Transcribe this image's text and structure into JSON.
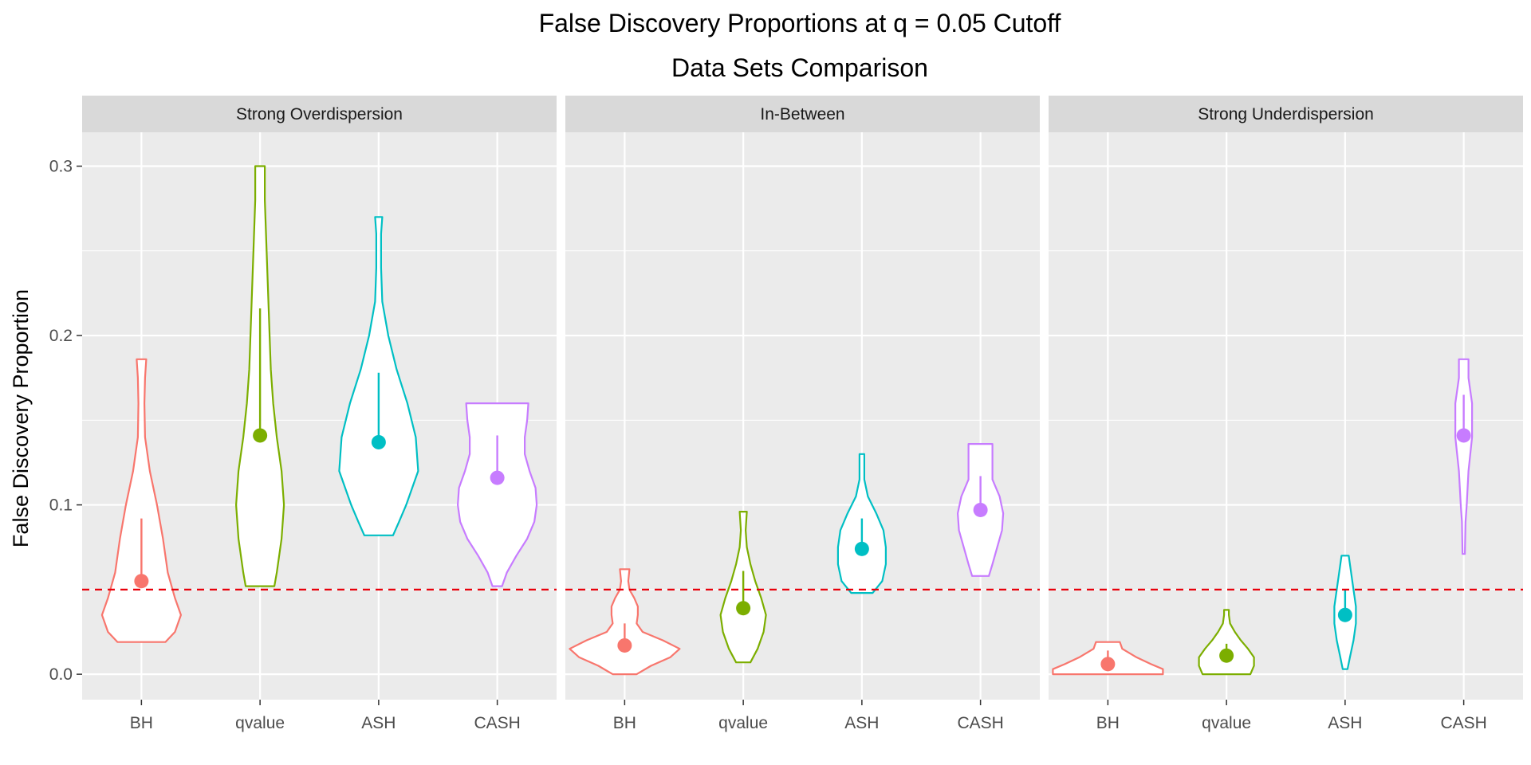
{
  "chart_data": {
    "type": "violin",
    "title": "False Discovery Proportions at q = 0.05 Cutoff",
    "subtitle": "Data Sets Comparison",
    "ylabel": "False Discovery Proportion",
    "xlabel": "",
    "ylim": [
      -0.015,
      0.32
    ],
    "yticks": [
      0.0,
      0.1,
      0.2,
      0.3
    ],
    "ytick_labels": [
      "0.0",
      "0.1",
      "0.2",
      "0.3"
    ],
    "reference_line": {
      "y": 0.05,
      "color": "#E8000B",
      "style": "dashed"
    },
    "categories": [
      "BH",
      "qvalue",
      "ASH",
      "CASH"
    ],
    "colors": {
      "BH": "#F8766D",
      "qvalue": "#7CAE00",
      "ASH": "#00BFC4",
      "CASH": "#C77CFF"
    },
    "grid": true,
    "panels": [
      {
        "name": "Strong Overdispersion",
        "violins": [
          {
            "method": "BH",
            "mean": 0.055,
            "sd_upper": 0.092,
            "profile": [
              [
                0.019,
                0.2
              ],
              [
                0.025,
                0.28
              ],
              [
                0.035,
                0.33
              ],
              [
                0.045,
                0.28
              ],
              [
                0.06,
                0.22
              ],
              [
                0.08,
                0.18
              ],
              [
                0.1,
                0.13
              ],
              [
                0.12,
                0.07
              ],
              [
                0.14,
                0.03
              ],
              [
                0.16,
                0.025
              ],
              [
                0.175,
                0.03
              ],
              [
                0.186,
                0.04
              ]
            ]
          },
          {
            "method": "qvalue",
            "mean": 0.141,
            "sd_upper": 0.216,
            "profile": [
              [
                0.052,
                0.12
              ],
              [
                0.06,
                0.14
              ],
              [
                0.08,
                0.18
              ],
              [
                0.1,
                0.2
              ],
              [
                0.12,
                0.18
              ],
              [
                0.14,
                0.14
              ],
              [
                0.16,
                0.11
              ],
              [
                0.18,
                0.09
              ],
              [
                0.2,
                0.08
              ],
              [
                0.22,
                0.07
              ],
              [
                0.24,
                0.06
              ],
              [
                0.26,
                0.05
              ],
              [
                0.28,
                0.04
              ],
              [
                0.3,
                0.04
              ]
            ]
          },
          {
            "method": "ASH",
            "mean": 0.137,
            "sd_upper": 0.178,
            "profile": [
              [
                0.082,
                0.12
              ],
              [
                0.09,
                0.17
              ],
              [
                0.1,
                0.23
              ],
              [
                0.12,
                0.33
              ],
              [
                0.14,
                0.31
              ],
              [
                0.16,
                0.24
              ],
              [
                0.18,
                0.15
              ],
              [
                0.2,
                0.08
              ],
              [
                0.22,
                0.03
              ],
              [
                0.24,
                0.02
              ],
              [
                0.26,
                0.02
              ],
              [
                0.27,
                0.03
              ]
            ]
          },
          {
            "method": "CASH",
            "mean": 0.116,
            "sd_upper": 0.141,
            "profile": [
              [
                0.052,
                0.04
              ],
              [
                0.06,
                0.08
              ],
              [
                0.07,
                0.16
              ],
              [
                0.08,
                0.25
              ],
              [
                0.09,
                0.31
              ],
              [
                0.1,
                0.33
              ],
              [
                0.11,
                0.32
              ],
              [
                0.12,
                0.27
              ],
              [
                0.13,
                0.23
              ],
              [
                0.14,
                0.23
              ],
              [
                0.15,
                0.25
              ],
              [
                0.16,
                0.26
              ]
            ]
          }
        ]
      },
      {
        "name": "In-Between",
        "violins": [
          {
            "method": "BH",
            "mean": 0.017,
            "sd_upper": 0.03,
            "profile": [
              [
                0.0,
                0.1
              ],
              [
                0.005,
                0.22
              ],
              [
                0.01,
                0.38
              ],
              [
                0.015,
                0.46
              ],
              [
                0.02,
                0.32
              ],
              [
                0.025,
                0.15
              ],
              [
                0.03,
                0.1
              ],
              [
                0.035,
                0.11
              ],
              [
                0.04,
                0.11
              ],
              [
                0.045,
                0.08
              ],
              [
                0.05,
                0.04
              ],
              [
                0.055,
                0.03
              ],
              [
                0.062,
                0.04
              ]
            ]
          },
          {
            "method": "qvalue",
            "mean": 0.039,
            "sd_upper": 0.061,
            "profile": [
              [
                0.007,
                0.06
              ],
              [
                0.015,
                0.12
              ],
              [
                0.025,
                0.17
              ],
              [
                0.035,
                0.19
              ],
              [
                0.045,
                0.15
              ],
              [
                0.055,
                0.1
              ],
              [
                0.065,
                0.06
              ],
              [
                0.075,
                0.03
              ],
              [
                0.085,
                0.02
              ],
              [
                0.096,
                0.03
              ]
            ]
          },
          {
            "method": "ASH",
            "mean": 0.074,
            "sd_upper": 0.092,
            "profile": [
              [
                0.048,
                0.09
              ],
              [
                0.055,
                0.17
              ],
              [
                0.065,
                0.2
              ],
              [
                0.075,
                0.2
              ],
              [
                0.085,
                0.18
              ],
              [
                0.095,
                0.12
              ],
              [
                0.105,
                0.05
              ],
              [
                0.115,
                0.02
              ],
              [
                0.123,
                0.02
              ],
              [
                0.13,
                0.02
              ]
            ]
          },
          {
            "method": "CASH",
            "mean": 0.097,
            "sd_upper": 0.117,
            "profile": [
              [
                0.058,
                0.07
              ],
              [
                0.065,
                0.1
              ],
              [
                0.075,
                0.14
              ],
              [
                0.085,
                0.18
              ],
              [
                0.095,
                0.19
              ],
              [
                0.105,
                0.16
              ],
              [
                0.115,
                0.1
              ],
              [
                0.125,
                0.1
              ],
              [
                0.136,
                0.1
              ]
            ]
          }
        ]
      },
      {
        "name": "Strong Underdispersion",
        "violins": [
          {
            "method": "BH",
            "mean": 0.006,
            "sd_upper": 0.014,
            "profile": [
              [
                0.0,
                0.46
              ],
              [
                0.003,
                0.46
              ],
              [
                0.006,
                0.36
              ],
              [
                0.01,
                0.24
              ],
              [
                0.015,
                0.12
              ],
              [
                0.019,
                0.1
              ]
            ]
          },
          {
            "method": "qvalue",
            "mean": 0.011,
            "sd_upper": 0.018,
            "profile": [
              [
                0.0,
                0.2
              ],
              [
                0.005,
                0.23
              ],
              [
                0.01,
                0.23
              ],
              [
                0.015,
                0.18
              ],
              [
                0.02,
                0.12
              ],
              [
                0.025,
                0.07
              ],
              [
                0.03,
                0.03
              ],
              [
                0.035,
                0.02
              ],
              [
                0.038,
                0.02
              ]
            ]
          },
          {
            "method": "ASH",
            "mean": 0.035,
            "sd_upper": 0.05,
            "profile": [
              [
                0.003,
                0.02
              ],
              [
                0.01,
                0.04
              ],
              [
                0.02,
                0.07
              ],
              [
                0.03,
                0.09
              ],
              [
                0.04,
                0.09
              ],
              [
                0.05,
                0.07
              ],
              [
                0.06,
                0.05
              ],
              [
                0.07,
                0.03
              ]
            ]
          },
          {
            "method": "CASH",
            "mean": 0.141,
            "sd_upper": 0.165,
            "profile": [
              [
                0.071,
                0.01
              ],
              [
                0.09,
                0.015
              ],
              [
                0.1,
                0.025
              ],
              [
                0.12,
                0.04
              ],
              [
                0.14,
                0.07
              ],
              [
                0.16,
                0.07
              ],
              [
                0.175,
                0.04
              ],
              [
                0.186,
                0.04
              ]
            ]
          }
        ]
      }
    ]
  }
}
